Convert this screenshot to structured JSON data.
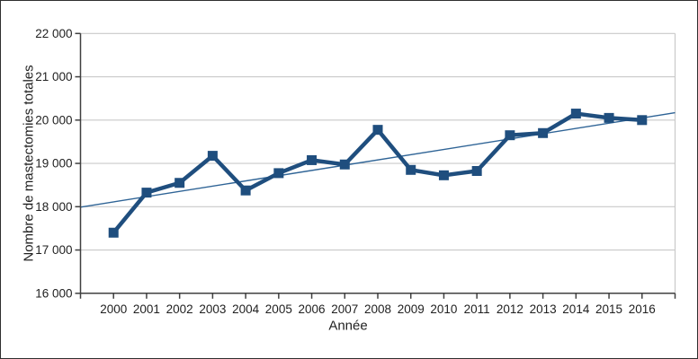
{
  "figure": {
    "background": "#ffffff",
    "border_color": "#2f2f2f"
  },
  "chart_data": {
    "type": "line",
    "title": "",
    "xlabel": "Année",
    "ylabel": "Nombre de mastectomies totales",
    "categories": [
      "2000",
      "2001",
      "2002",
      "2003",
      "2004",
      "2005",
      "2006",
      "2007",
      "2008",
      "2009",
      "2010",
      "2011",
      "2012",
      "2013",
      "2014",
      "2015",
      "2016"
    ],
    "series": [
      {
        "name": "Nombre de mastectomies totales",
        "values": [
          17400,
          18325,
          18550,
          19175,
          18375,
          18775,
          19075,
          18975,
          19775,
          18850,
          18725,
          18825,
          19650,
          19700,
          20150,
          20050,
          20000
        ],
        "color": "#1f4e7e",
        "marker": "square",
        "line_width": 4.5,
        "marker_size": 11
      }
    ],
    "trendline": {
      "name": "linear-trend",
      "start_value": 17990,
      "end_value": 20170,
      "color": "#2f6496",
      "line_width": 1.4
    },
    "ylim": [
      16000,
      22000
    ],
    "ytick_step": 1000,
    "ytick_labels": [
      "16 000",
      "17 000",
      "18 000",
      "19 000",
      "20 000",
      "21 000",
      "22 000"
    ],
    "grid": "horizontal",
    "legend": "none",
    "colors": {
      "gridline": "#c9c9c9",
      "axis": "#404040",
      "text": "#1f1f1f"
    }
  }
}
